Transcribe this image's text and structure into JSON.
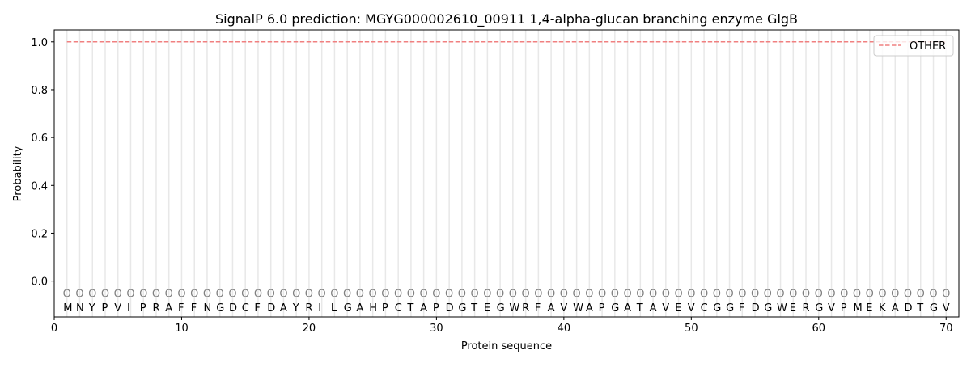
{
  "chart_data": {
    "type": "line",
    "title": "SignalP 6.0 prediction: MGYG000002610_00911 1,4-alpha-glucan branching enzyme GlgB",
    "xlabel": "Protein sequence",
    "ylabel": "Probability",
    "xlim": [
      0,
      71
    ],
    "ylim": [
      -0.15,
      1.05
    ],
    "xticks": [
      0,
      10,
      20,
      30,
      40,
      50,
      60,
      70
    ],
    "yticks": [
      "0.0",
      "0.2",
      "0.4",
      "0.6",
      "0.8",
      "1.0"
    ],
    "sequence": "MNYPVIPRAFFNGDCFDAYRILGAHPCTAPDGTEGWRFAVWAPGATAVEVCGGFDGWERGVPMEKADTGV",
    "marker_label": "O",
    "series": [
      {
        "name": "OTHER",
        "color": "#f08080",
        "style": "dashed",
        "x_start": 1,
        "x_end": 70,
        "value": 1.0
      }
    ],
    "legend": {
      "position": "top-right",
      "entries": [
        "OTHER"
      ]
    },
    "grid": "vertical lines at each residue"
  }
}
